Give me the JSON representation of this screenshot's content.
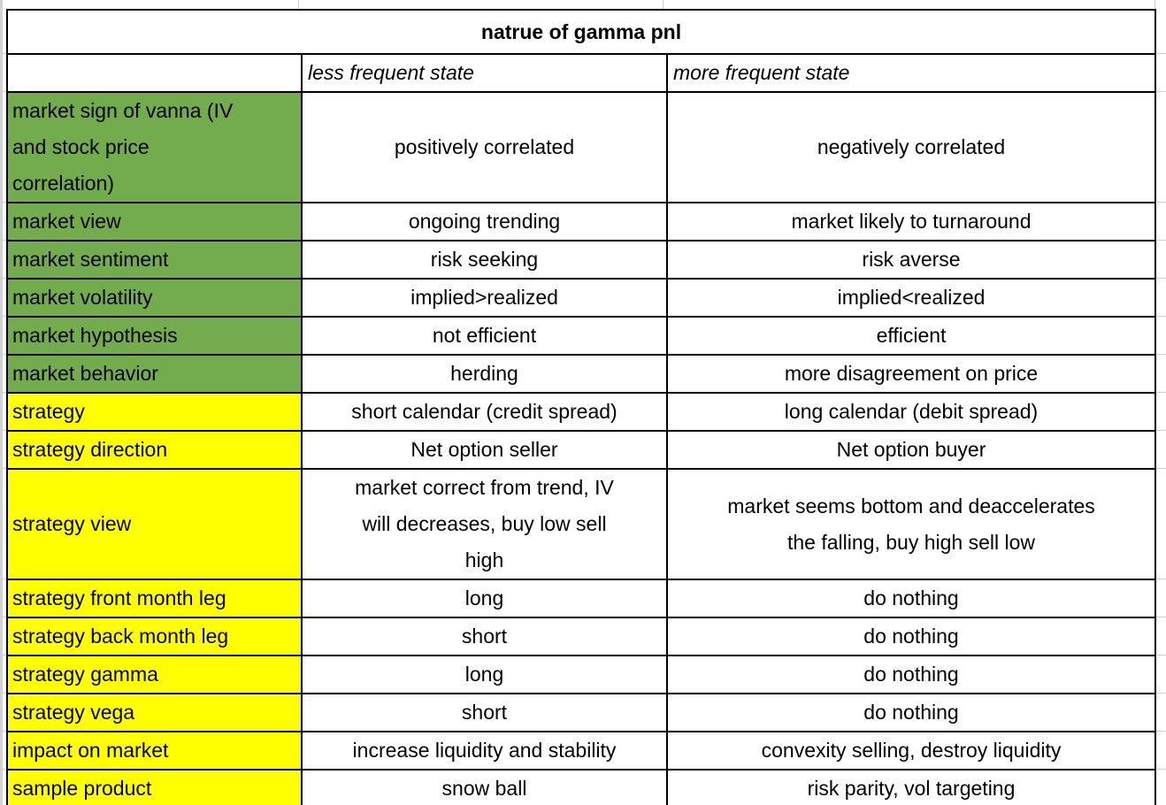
{
  "title": "natrue of gamma pnl",
  "headers": {
    "corner": "",
    "less": "less frequent state",
    "more": "more frequent state"
  },
  "colors": {
    "market_label_bg": "#73ac4c",
    "strategy_label_bg": "#ffff00",
    "table_border": "#000000",
    "gridline": "#d0d0d0",
    "gutter": "#d2d2d2"
  },
  "rows": [
    {
      "group": "market",
      "tall": true,
      "label": "market sign of vanna (IV\nand stock price\ncorrelation)",
      "less": "positively correlated",
      "more": "negatively correlated"
    },
    {
      "group": "market",
      "label": "market view",
      "less": "ongoing trending",
      "more": "market likely to turnaround"
    },
    {
      "group": "market",
      "label": "market sentiment",
      "less": "risk seeking",
      "more": "risk averse"
    },
    {
      "group": "market",
      "label": "market volatility",
      "less": "implied>realized",
      "more": "implied<realized"
    },
    {
      "group": "market",
      "label": "market hypothesis",
      "less": "not efficient",
      "more": "efficient"
    },
    {
      "group": "market",
      "label": "market behavior",
      "less": "herding",
      "more": "more disagreement on price"
    },
    {
      "group": "strategy",
      "label": "strategy",
      "less": "short calendar (credit spread)",
      "more": "long calendar (debit spread)"
    },
    {
      "group": "strategy",
      "label": "strategy direction",
      "less": "Net option seller",
      "more": "Net option buyer"
    },
    {
      "group": "strategy",
      "tall": true,
      "label": "strategy view",
      "less": "market correct from trend, IV\nwill decreases, buy low sell\nhigh",
      "more": "market seems bottom and deaccelerates\nthe falling, buy high sell low"
    },
    {
      "group": "strategy",
      "label": "strategy front month leg",
      "less": "long",
      "more": "do nothing"
    },
    {
      "group": "strategy",
      "label": "strategy back month leg",
      "less": "short",
      "more": "do nothing"
    },
    {
      "group": "strategy",
      "label": "strategy gamma",
      "less": "long",
      "more": "do nothing"
    },
    {
      "group": "strategy",
      "label": "strategy vega",
      "less": "short",
      "more": "do nothing"
    },
    {
      "group": "strategy",
      "label": "impact on market",
      "less": "increase liquidity and stability",
      "more": "convexity selling, destroy liquidity"
    },
    {
      "group": "strategy",
      "label": "sample product",
      "less": "snow ball",
      "more": "risk parity, vol targeting"
    }
  ]
}
